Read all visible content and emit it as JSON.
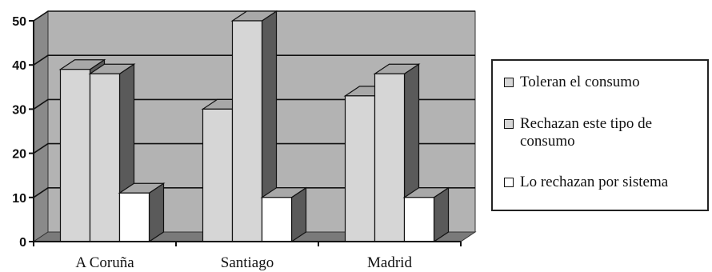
{
  "chart_data": {
    "type": "bar",
    "categories": [
      "A Coruña",
      "Santiago",
      "Madrid"
    ],
    "series": [
      {
        "name": "Toleran el consumo",
        "values": [
          39,
          30,
          33
        ]
      },
      {
        "name": "Rechazan este tipo de consumo",
        "values": [
          38,
          50,
          38
        ]
      },
      {
        "name": "Lo rechazan por sistema",
        "values": [
          11,
          10,
          10
        ]
      }
    ],
    "ylim": [
      0,
      50
    ],
    "yticks": [
      0,
      10,
      20,
      30,
      40,
      50
    ],
    "grid": true,
    "legend": "right",
    "colors": {
      "series": [
        "#d6d6d6",
        "#d6d6d6",
        "#ffffff"
      ],
      "bar_side": "#5a5a5a",
      "bar_top": "#a8a8a8",
      "plot_back": "#b3b3b3",
      "plot_side": "#8a8a8a",
      "floor": "#7a7a7a"
    }
  }
}
